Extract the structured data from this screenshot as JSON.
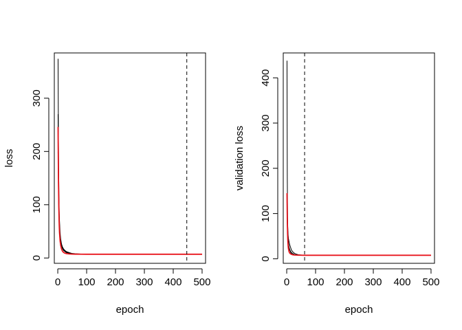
{
  "chart_data": [
    {
      "type": "line",
      "title": "",
      "xlabel": "epoch",
      "ylabel": "loss",
      "xlim": [
        -12,
        512
      ],
      "ylim": [
        -10,
        385
      ],
      "xticks": [
        0,
        100,
        200,
        300,
        400,
        500
      ],
      "yticks": [
        0,
        100,
        200,
        300
      ],
      "grid": false,
      "legend": "none",
      "vline": {
        "x": 447,
        "style": "dashed",
        "color": "#000000"
      },
      "series": [
        {
          "color": "#000000",
          "x": [
            1,
            2,
            3,
            4,
            5,
            6,
            8,
            10,
            13,
            16,
            20,
            25,
            30,
            40,
            50,
            60,
            80,
            100,
            150,
            200,
            300,
            400,
            500
          ],
          "values": [
            374,
            250,
            170,
            120,
            90,
            70,
            48,
            36,
            26,
            20,
            16,
            13,
            11,
            9,
            8,
            7.5,
            7.2,
            7,
            7,
            7,
            7,
            7,
            7
          ]
        },
        {
          "color": "#000000",
          "x": [
            1,
            2,
            3,
            4,
            5,
            6,
            8,
            10,
            13,
            16,
            20,
            25,
            30,
            40,
            50,
            60,
            80,
            100,
            150,
            200,
            300,
            400,
            500
          ],
          "values": [
            270,
            190,
            130,
            95,
            72,
            58,
            42,
            33,
            26,
            21,
            17,
            14,
            12,
            10,
            8.5,
            8,
            7.5,
            7.2,
            7,
            7,
            7,
            7,
            7
          ]
        },
        {
          "color": "#000000",
          "x": [
            1,
            2,
            3,
            4,
            5,
            6,
            8,
            10,
            13,
            16,
            20,
            25,
            30,
            40,
            50,
            60,
            80,
            100,
            150,
            200,
            300,
            400,
            500
          ],
          "values": [
            200,
            140,
            100,
            75,
            60,
            50,
            38,
            30,
            23,
            18,
            14,
            12,
            10,
            9,
            8,
            7.5,
            7.2,
            7,
            7,
            7,
            7,
            7,
            7
          ]
        },
        {
          "color": "#e8141c",
          "x": [
            1,
            2,
            3,
            4,
            5,
            6,
            8,
            10,
            13,
            16,
            20,
            25,
            30,
            40,
            50,
            60,
            80,
            100,
            150,
            200,
            300,
            400,
            500
          ],
          "values": [
            246,
            175,
            120,
            85,
            62,
            48,
            32,
            24,
            17,
            13,
            10.5,
            9,
            8.2,
            7.6,
            7.3,
            7.2,
            7.1,
            7,
            7,
            7,
            7,
            7,
            7
          ]
        }
      ]
    },
    {
      "type": "line",
      "title": "",
      "xlabel": "epoch",
      "ylabel": "validation loss",
      "xlim": [
        -12,
        512
      ],
      "ylim": [
        -10,
        455
      ],
      "xticks": [
        0,
        100,
        200,
        300,
        400,
        500
      ],
      "yticks": [
        0,
        100,
        200,
        300,
        400
      ],
      "grid": false,
      "legend": "none",
      "vline": {
        "x": 62,
        "style": "dashed",
        "color": "#000000"
      },
      "series": [
        {
          "color": "#000000",
          "x": [
            1,
            2,
            3,
            4,
            5,
            6,
            8,
            10,
            13,
            16,
            20,
            25,
            30,
            40,
            50,
            60,
            80,
            100,
            150,
            200,
            300,
            400,
            500
          ],
          "values": [
            438,
            180,
            90,
            60,
            45,
            35,
            25,
            20,
            15,
            12,
            10,
            9,
            8.5,
            8,
            7.8,
            7.6,
            7.5,
            7.5,
            7.5,
            7.5,
            7.5,
            7.5,
            7.5
          ]
        },
        {
          "color": "#000000",
          "x": [
            1,
            2,
            3,
            4,
            5,
            6,
            8,
            10,
            13,
            16,
            20,
            25,
            30,
            40,
            50,
            60,
            80,
            100,
            150,
            200,
            300,
            400,
            500
          ],
          "values": [
            120,
            100,
            80,
            62,
            52,
            45,
            38,
            32,
            26,
            20,
            16,
            13,
            11,
            9,
            8.5,
            8,
            7.8,
            7.5,
            7.5,
            7.5,
            7.5,
            7.5,
            7.5
          ]
        },
        {
          "color": "#000000",
          "x": [
            1,
            2,
            3,
            4,
            5,
            6,
            8,
            10,
            13,
            16,
            20,
            25,
            30,
            40,
            50,
            60,
            80,
            100,
            150,
            200,
            300,
            400,
            500
          ],
          "values": [
            90,
            70,
            55,
            45,
            38,
            32,
            26,
            21,
            17,
            14,
            12,
            10,
            9,
            8.5,
            8,
            7.8,
            7.6,
            7.5,
            7.5,
            7.5,
            7.5,
            7.5,
            7.5
          ]
        },
        {
          "color": "#e8141c",
          "x": [
            1,
            2,
            3,
            4,
            5,
            6,
            8,
            10,
            13,
            16,
            20,
            25,
            30,
            40,
            50,
            60,
            80,
            100,
            150,
            200,
            300,
            400,
            500
          ],
          "values": [
            145,
            90,
            55,
            38,
            28,
            22,
            16,
            13,
            11,
            10,
            9,
            8.5,
            8.2,
            8,
            7.9,
            7.8,
            7.8,
            7.8,
            7.8,
            7.8,
            7.8,
            7.8,
            7.8
          ]
        }
      ]
    }
  ]
}
